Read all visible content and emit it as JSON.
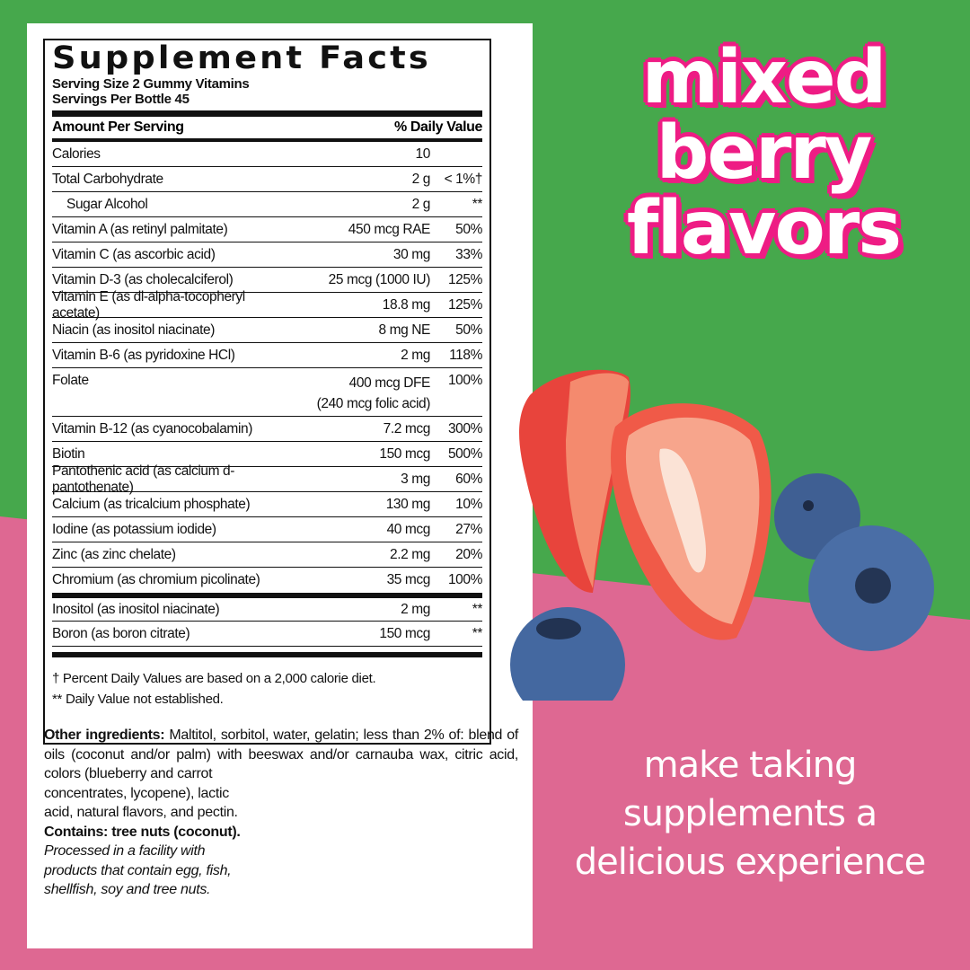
{
  "colors": {
    "green": "#46a84c",
    "pink": "#de6892",
    "accent": "#ee1c84"
  },
  "label": {
    "title": "Supplement Facts",
    "serving_size": "Serving Size 2 Gummy Vitamins",
    "servings_per": "Servings Per Bottle 45",
    "amount_header": "Amount Per Serving",
    "dv_header": "% Daily Value",
    "rows": [
      {
        "name": "Calories",
        "amount": "10",
        "dv": ""
      },
      {
        "name": "Total Carbohydrate",
        "amount": "2 g",
        "dv": "< 1%†"
      },
      {
        "name": "Sugar Alcohol",
        "amount": "2 g",
        "dv": "**"
      },
      {
        "name": "Vitamin A (as retinyl palmitate)",
        "amount": "450 mcg RAE",
        "dv": "50%"
      },
      {
        "name": "Vitamin C (as ascorbic acid)",
        "amount": "30 mg",
        "dv": "33%"
      },
      {
        "name": "Vitamin D-3 (as cholecalciferol)",
        "amount": "25 mcg (1000 IU)",
        "dv": "125%"
      },
      {
        "name": "Vitamin E (as dl-alpha-tocopheryl acetate)",
        "amount": "18.8 mg",
        "dv": "125%"
      },
      {
        "name": "Niacin (as inositol niacinate)",
        "amount": "8 mg NE",
        "dv": "50%"
      },
      {
        "name": "Vitamin B-6 (as pyridoxine HCl)",
        "amount": "2 mg",
        "dv": "118%"
      },
      {
        "name": "Folate",
        "amount": "400 mcg DFE",
        "amount2": "(240 mcg folic acid)",
        "dv": "100%"
      },
      {
        "name": "Vitamin B-12 (as cyanocobalamin)",
        "amount": "7.2 mcg",
        "dv": "300%"
      },
      {
        "name": "Biotin",
        "amount": "150 mcg",
        "dv": "500%"
      },
      {
        "name": "Pantothenic acid (as calcium d-pantothenate)",
        "amount": "3 mg",
        "dv": "60%"
      },
      {
        "name": "Calcium (as tricalcium phosphate)",
        "amount": "130 mg",
        "dv": "10%"
      },
      {
        "name": "Iodine (as potassium iodide)",
        "amount": "40 mcg",
        "dv": "27%"
      },
      {
        "name": "Zinc (as zinc chelate)",
        "amount": "2.2 mg",
        "dv": "20%"
      },
      {
        "name": "Chromium (as chromium picolinate)",
        "amount": "35 mcg",
        "dv": "100%"
      },
      {
        "name": "Inositol (as inositol niacinate)",
        "amount": "2 mg",
        "dv": "**"
      },
      {
        "name": "Boron (as boron citrate)",
        "amount": "150 mcg",
        "dv": "**"
      }
    ],
    "footnote1": "† Percent Daily Values are based on a 2,000 calorie diet.",
    "footnote2": "** Daily Value not established."
  },
  "ingredients": {
    "label": "Other ingredients:",
    "text1": " Maltitol, sorbitol, water, gelatin; less than 2% of: blend of oils (coconut and/or palm) with beeswax and/or carnauba wax, citric acid, colors (blueberry and carrot",
    "text2": "concentrates, lycopene), lactic acid, natural flavors, and pectin. ",
    "contains": "Contains: tree nuts (coconut).",
    "facility": "Processed in a facility with products that contain egg, fish, shellfish, soy and tree nuts."
  },
  "headline": {
    "line1": "mixed",
    "line2": "berry",
    "line3": "flavors"
  },
  "tagline": {
    "line1": "make taking",
    "line2": "supplements a",
    "line3": "delicious experience"
  }
}
